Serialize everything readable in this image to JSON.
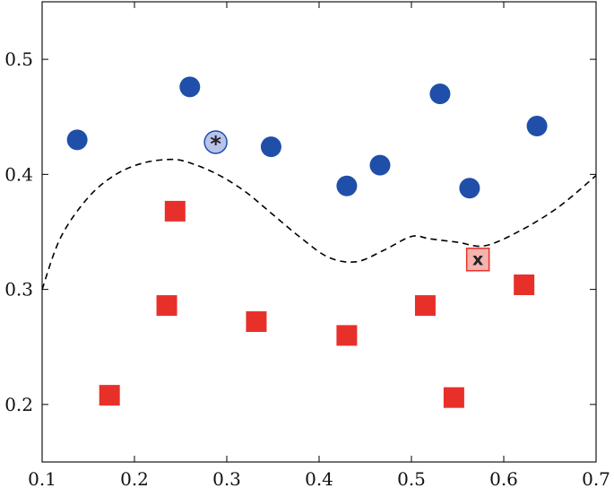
{
  "chart_data": {
    "type": "scatter",
    "title": "",
    "xlabel": "",
    "ylabel": "",
    "xlim": [
      0.1,
      0.7
    ],
    "ylim": [
      0.15,
      0.55
    ],
    "grid": false,
    "x_ticks": [
      0.1,
      0.2,
      0.3,
      0.4,
      0.5,
      0.6,
      0.7
    ],
    "y_ticks": [
      0.2,
      0.3,
      0.4,
      0.5
    ],
    "x_tick_labels": [
      "0.1",
      "0.2",
      "0.3",
      "0.4",
      "0.5",
      "0.6",
      "0.7"
    ],
    "y_tick_labels": [
      "0.2",
      "0.3",
      "0.4",
      "0.5"
    ],
    "series": [
      {
        "marker": "circle",
        "color": "#1f4fa8",
        "points": [
          {
            "x": 0.138,
            "y": 0.43
          },
          {
            "x": 0.26,
            "y": 0.476
          },
          {
            "x": 0.348,
            "y": 0.424
          },
          {
            "x": 0.43,
            "y": 0.39
          },
          {
            "x": 0.466,
            "y": 0.408
          },
          {
            "x": 0.531,
            "y": 0.47
          },
          {
            "x": 0.563,
            "y": 0.388
          },
          {
            "x": 0.636,
            "y": 0.442
          }
        ]
      },
      {
        "marker": "square",
        "color": "#e8302a",
        "points": [
          {
            "x": 0.173,
            "y": 0.208
          },
          {
            "x": 0.235,
            "y": 0.286
          },
          {
            "x": 0.244,
            "y": 0.368
          },
          {
            "x": 0.332,
            "y": 0.272
          },
          {
            "x": 0.43,
            "y": 0.26
          },
          {
            "x": 0.515,
            "y": 0.286
          },
          {
            "x": 0.546,
            "y": 0.206
          },
          {
            "x": 0.622,
            "y": 0.304
          }
        ]
      }
    ],
    "highlighted": [
      {
        "x": 0.288,
        "y": 0.428,
        "marker": "circle",
        "fill": "#b9c3ea",
        "stroke": "#1f4fa8",
        "label": "*"
      },
      {
        "x": 0.572,
        "y": 0.326,
        "marker": "square",
        "fill": "#f4b3ae",
        "stroke": "#e8302a",
        "label": "x"
      }
    ],
    "decision_boundary": {
      "style": "dashed",
      "color": "#000000",
      "points": [
        [
          0.1,
          0.3
        ],
        [
          0.12,
          0.345
        ],
        [
          0.15,
          0.38
        ],
        [
          0.18,
          0.4
        ],
        [
          0.21,
          0.41
        ],
        [
          0.24,
          0.413
        ],
        [
          0.26,
          0.41
        ],
        [
          0.29,
          0.4
        ],
        [
          0.32,
          0.385
        ],
        [
          0.35,
          0.365
        ],
        [
          0.38,
          0.345
        ],
        [
          0.41,
          0.328
        ],
        [
          0.44,
          0.324
        ],
        [
          0.47,
          0.334
        ],
        [
          0.5,
          0.346
        ],
        [
          0.52,
          0.344
        ],
        [
          0.55,
          0.341
        ],
        [
          0.58,
          0.338
        ],
        [
          0.62,
          0.352
        ],
        [
          0.66,
          0.372
        ],
        [
          0.7,
          0.399
        ]
      ]
    }
  }
}
